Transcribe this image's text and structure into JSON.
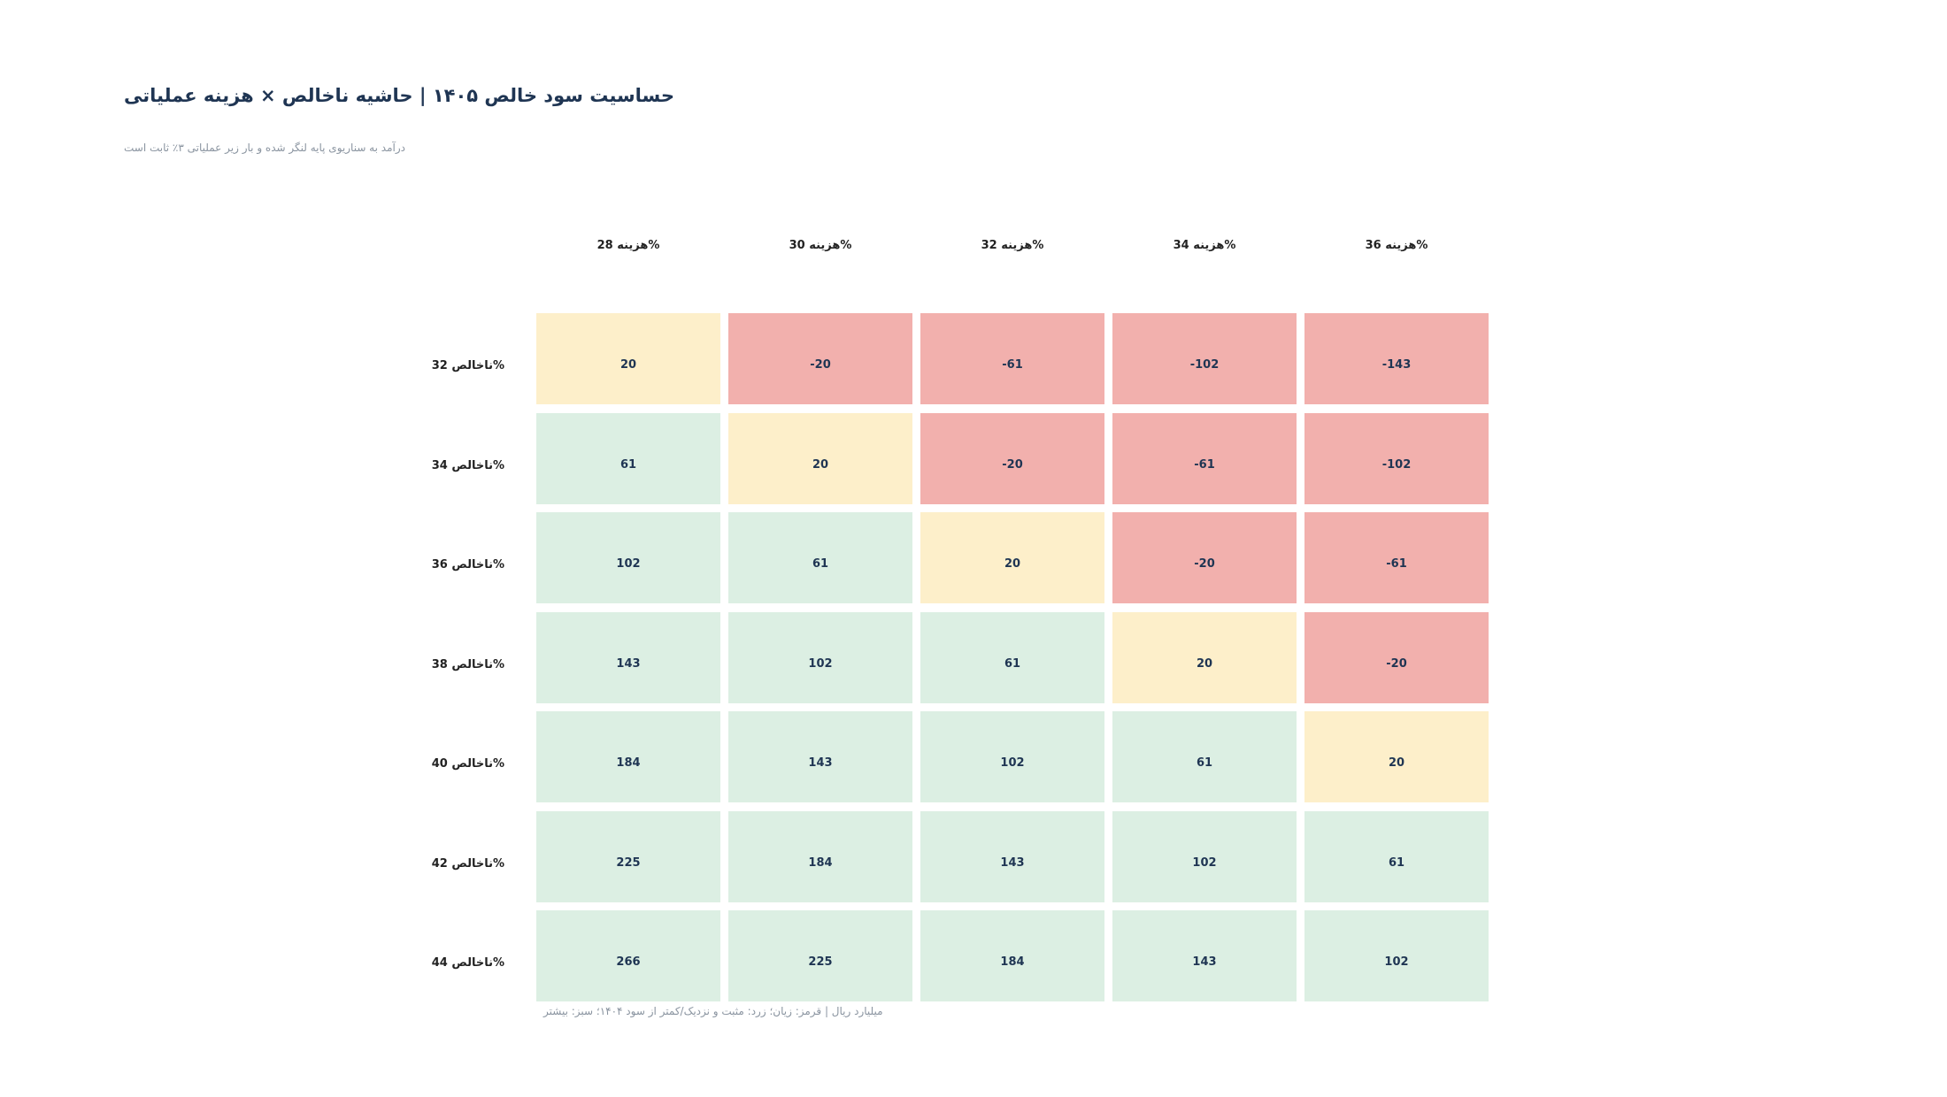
{
  "title": "حساسیت سود خالص ۱۴۰۵ | حاشیه ناخالص × هزینه عملیاتی",
  "subtitle": "درآمد به سناریوی پایه لنگر شده و بار زیر عملیاتی ۳٪ ثابت است",
  "footnote": "میلیارد ریال | قرمز: زیان؛ زرد: مثبت و نزدیک/کمتر از سود ۱۴۰۴؛ سبز: بیشتر",
  "colors": {
    "loss": "#f2b0ad",
    "near": "#fdefca",
    "gain": "#dcefe3",
    "text": "#1f3553"
  },
  "chart_data": {
    "type": "heatmap",
    "title": "حساسیت سود خالص ۱۴۰۵ | حاشیه ناخالص × هزینه عملیاتی",
    "x_categories": [
      "هزینه 28%",
      "هزینه 30%",
      "هزینه 32%",
      "هزینه 34%",
      "هزینه 36%"
    ],
    "y_categories": [
      "ناخالص 32%",
      "ناخالص 34%",
      "ناخالص 36%",
      "ناخالص 38%",
      "ناخالص 40%",
      "ناخالص 42%",
      "ناخالص 44%"
    ],
    "values": [
      [
        20,
        -20,
        -61,
        -102,
        -143
      ],
      [
        61,
        20,
        -20,
        -61,
        -102
      ],
      [
        102,
        61,
        20,
        -20,
        -61
      ],
      [
        143,
        102,
        61,
        20,
        -20
      ],
      [
        184,
        143,
        102,
        61,
        20
      ],
      [
        225,
        184,
        143,
        102,
        61
      ],
      [
        266,
        225,
        184,
        143,
        102
      ]
    ],
    "labels": [
      [
        "20",
        "-20",
        "-61",
        "-102",
        "-143"
      ],
      [
        "61",
        "20",
        "-20",
        "-61",
        "-102"
      ],
      [
        "102",
        "61",
        "20",
        "-20",
        "-61"
      ],
      [
        "143",
        "102",
        "61",
        "20",
        "-20"
      ],
      [
        "184",
        "143",
        "102",
        "61",
        "20"
      ],
      [
        "225",
        "184",
        "143",
        "102",
        "61"
      ],
      [
        "266",
        "225",
        "184",
        "143",
        "102"
      ]
    ],
    "categories_by_cell": [
      [
        "near",
        "loss",
        "loss",
        "loss",
        "loss"
      ],
      [
        "gain",
        "near",
        "loss",
        "loss",
        "loss"
      ],
      [
        "gain",
        "gain",
        "near",
        "loss",
        "loss"
      ],
      [
        "gain",
        "gain",
        "gain",
        "near",
        "loss"
      ],
      [
        "gain",
        "gain",
        "gain",
        "gain",
        "near"
      ],
      [
        "gain",
        "gain",
        "gain",
        "gain",
        "gain"
      ],
      [
        "gain",
        "gain",
        "gain",
        "gain",
        "gain"
      ]
    ],
    "unit": "میلیارد ریال"
  }
}
